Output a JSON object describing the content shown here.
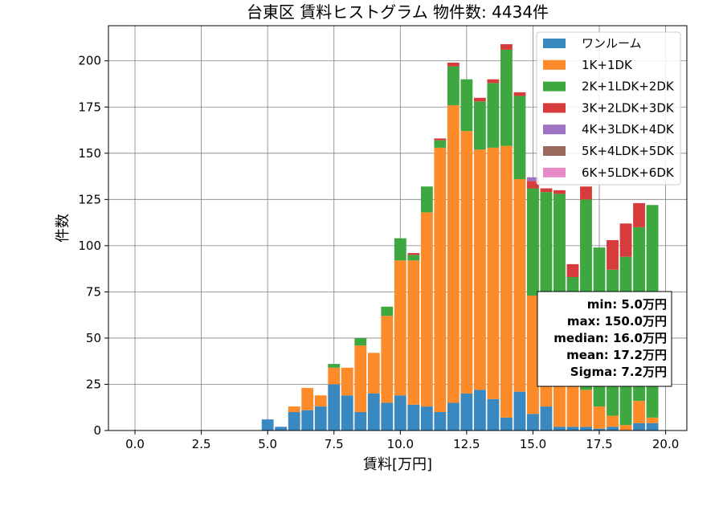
{
  "chart_data": {
    "type": "bar",
    "stacked": true,
    "title": "台東区 賃料ヒストグラム 物件数: 4434件",
    "xlabel": "賃料[万円]",
    "ylabel": "件数",
    "xlim": [
      -1.0,
      20.8
    ],
    "ylim": [
      0,
      219
    ],
    "xticks": [
      "0.0",
      "2.5",
      "5.0",
      "7.5",
      "10.0",
      "12.5",
      "15.0",
      "17.5",
      "20.0"
    ],
    "yticks": [
      "0",
      "25",
      "50",
      "75",
      "100",
      "125",
      "150",
      "175",
      "200"
    ],
    "grid": true,
    "legend_position": "top-right",
    "bin_width": 0.5,
    "x": [
      5.0,
      5.5,
      6.0,
      6.5,
      7.0,
      7.5,
      8.0,
      8.5,
      9.0,
      9.5,
      10.0,
      10.5,
      11.0,
      11.5,
      12.0,
      12.5,
      13.0,
      13.5,
      14.0,
      14.5,
      15.0,
      15.5,
      16.0,
      16.5,
      17.0,
      17.5,
      18.0,
      18.5,
      19.0,
      19.5
    ],
    "series": [
      {
        "name": "ワンルーム",
        "color": "#3a88c0",
        "values": [
          6,
          2,
          10,
          11,
          13,
          25,
          19,
          10,
          20,
          15,
          19,
          14,
          13,
          10,
          15,
          20,
          22,
          17,
          7,
          21,
          9,
          13,
          2,
          2,
          2,
          1,
          2,
          0,
          4,
          4
        ]
      },
      {
        "name": "1K+1DK",
        "color": "#fd8b2a",
        "values": [
          0,
          0,
          3,
          12,
          6,
          9,
          15,
          36,
          22,
          47,
          73,
          78,
          105,
          143,
          161,
          142,
          130,
          136,
          147,
          115,
          64,
          56,
          26,
          28,
          20,
          12,
          6,
          3,
          12,
          3
        ]
      },
      {
        "name": "2K+1LDK+2DK",
        "color": "#3fa73f",
        "values": [
          0,
          0,
          0,
          0,
          0,
          2,
          0,
          4,
          0,
          5,
          12,
          3,
          14,
          4,
          21,
          28,
          26,
          35,
          52,
          45,
          58,
          60,
          100,
          53,
          103,
          86,
          79,
          91,
          94,
          115
        ]
      },
      {
        "name": "3K+2LDK+3DK",
        "color": "#d63c3c",
        "values": [
          0,
          0,
          0,
          0,
          0,
          0,
          0,
          0,
          0,
          0,
          0,
          1,
          0,
          1,
          2,
          0,
          2,
          2,
          3,
          2,
          4,
          2,
          2,
          7,
          7,
          0,
          16,
          18,
          13,
          0
        ]
      },
      {
        "name": "4K+3LDK+4DK",
        "color": "#9e73c2",
        "values": [
          0,
          0,
          0,
          0,
          0,
          0,
          0,
          0,
          0,
          0,
          0,
          0,
          0,
          0,
          0,
          0,
          0,
          0,
          0,
          0,
          2,
          0,
          0,
          0,
          0,
          0,
          0,
          0,
          0,
          0
        ]
      },
      {
        "name": "5K+4LDK+5DK",
        "color": "#9b6a5f",
        "values": [
          0,
          0,
          0,
          0,
          0,
          0,
          0,
          0,
          0,
          0,
          0,
          0,
          0,
          0,
          0,
          0,
          0,
          0,
          0,
          0,
          0,
          0,
          0,
          0,
          0,
          0,
          0,
          0,
          0,
          0
        ]
      },
      {
        "name": "6K+5LDK+6DK",
        "color": "#e68bc8",
        "values": [
          0,
          0,
          0,
          0,
          0,
          0,
          0,
          0,
          0,
          0,
          0,
          0,
          0,
          0,
          0,
          0,
          0,
          0,
          0,
          0,
          0,
          0,
          0,
          0,
          0,
          0,
          0,
          0,
          0,
          0
        ]
      }
    ],
    "stats_box": [
      "min: 5.0万円",
      "max: 150.0万円",
      "median: 16.0万円",
      "mean: 17.2万円",
      "Sigma: 7.2万円"
    ]
  }
}
